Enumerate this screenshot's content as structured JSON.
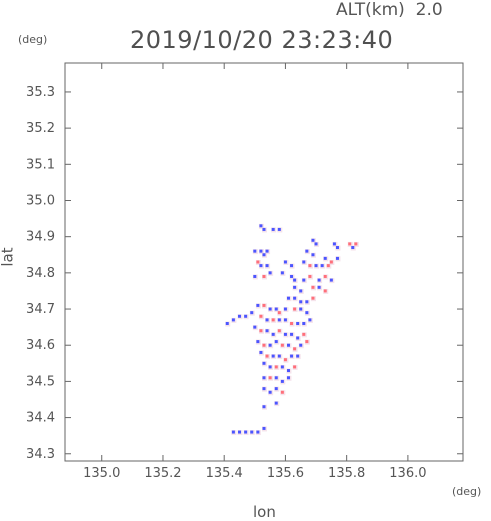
{
  "header": {
    "altitude_label": "ALT(km)",
    "altitude_value": "2.0",
    "datetime": "2019/10/20 23:23:40"
  },
  "chart_data": {
    "type": "heatmap",
    "xlabel": "lon",
    "ylabel": "lat",
    "x_unit": "(deg)",
    "y_unit": "(deg)",
    "xlim": [
      134.88,
      136.18
    ],
    "ylim": [
      34.28,
      35.38
    ],
    "x_ticks": [
      135.0,
      135.2,
      135.4,
      135.6,
      135.8,
      136.0
    ],
    "x_tick_labels": [
      "135.0",
      "135.2",
      "135.4",
      "135.6",
      "135.8",
      "136.0"
    ],
    "y_ticks": [
      34.3,
      34.4,
      34.5,
      34.6,
      34.7,
      34.8,
      34.9,
      35.0,
      35.1,
      35.2,
      35.3
    ],
    "y_tick_labels": [
      "34.3",
      "34.4",
      "34.5",
      "34.6",
      "34.7",
      "34.8",
      "34.9",
      "35.0",
      "35.1",
      "35.2",
      "35.3"
    ],
    "grid": false,
    "colors": {
      "positive": "#ff6f7a",
      "negative": "#4b55ff",
      "faint": "#f1d7e2"
    },
    "cells": [
      [
        135.52,
        34.93,
        -1
      ],
      [
        135.53,
        34.92,
        -1
      ],
      [
        135.56,
        34.92,
        -1
      ],
      [
        135.58,
        34.92,
        -1
      ],
      [
        135.69,
        34.89,
        -1
      ],
      [
        135.7,
        34.88,
        -1
      ],
      [
        135.76,
        34.88,
        -1
      ],
      [
        135.77,
        34.87,
        -1
      ],
      [
        135.81,
        34.88,
        1
      ],
      [
        135.83,
        34.88,
        1
      ],
      [
        135.82,
        34.87,
        -1
      ],
      [
        135.5,
        34.86,
        -1
      ],
      [
        135.52,
        34.86,
        -1
      ],
      [
        135.54,
        34.86,
        -1
      ],
      [
        135.53,
        34.85,
        -1
      ],
      [
        135.67,
        34.86,
        -1
      ],
      [
        135.69,
        34.85,
        -1
      ],
      [
        135.73,
        34.84,
        -1
      ],
      [
        135.75,
        34.83,
        1
      ],
      [
        135.77,
        34.84,
        -1
      ],
      [
        135.51,
        34.83,
        1
      ],
      [
        135.52,
        34.82,
        -1
      ],
      [
        135.54,
        34.82,
        -1
      ],
      [
        135.6,
        34.83,
        -1
      ],
      [
        135.62,
        34.82,
        -1
      ],
      [
        135.66,
        34.83,
        -1
      ],
      [
        135.68,
        34.82,
        1
      ],
      [
        135.7,
        34.82,
        -1
      ],
      [
        135.72,
        34.82,
        -1
      ],
      [
        135.74,
        34.82,
        1
      ],
      [
        135.5,
        34.79,
        -1
      ],
      [
        135.53,
        34.79,
        1
      ],
      [
        135.55,
        34.8,
        -1
      ],
      [
        135.59,
        34.8,
        -1
      ],
      [
        135.62,
        34.79,
        -1
      ],
      [
        135.63,
        34.78,
        -1
      ],
      [
        135.66,
        34.78,
        -1
      ],
      [
        135.68,
        34.79,
        1
      ],
      [
        135.71,
        34.78,
        -1
      ],
      [
        135.73,
        34.79,
        1
      ],
      [
        135.75,
        34.78,
        -1
      ],
      [
        135.63,
        34.76,
        -1
      ],
      [
        135.65,
        34.75,
        -1
      ],
      [
        135.69,
        34.76,
        1
      ],
      [
        135.71,
        34.76,
        -1
      ],
      [
        135.73,
        34.75,
        1
      ],
      [
        135.61,
        34.73,
        -1
      ],
      [
        135.63,
        34.73,
        -1
      ],
      [
        135.65,
        34.72,
        -1
      ],
      [
        135.67,
        34.72,
        -1
      ],
      [
        135.69,
        34.73,
        1
      ],
      [
        135.51,
        34.71,
        -1
      ],
      [
        135.53,
        34.71,
        1
      ],
      [
        135.55,
        34.7,
        -1
      ],
      [
        135.57,
        34.7,
        -1
      ],
      [
        135.58,
        34.69,
        1
      ],
      [
        135.6,
        34.7,
        -1
      ],
      [
        135.63,
        34.7,
        1
      ],
      [
        135.65,
        34.7,
        -1
      ],
      [
        135.67,
        34.69,
        -1
      ],
      [
        135.49,
        34.69,
        -1
      ],
      [
        135.47,
        34.68,
        -1
      ],
      [
        135.45,
        34.68,
        -1
      ],
      [
        135.43,
        34.67,
        -1
      ],
      [
        135.41,
        34.66,
        -1
      ],
      [
        135.52,
        34.68,
        1
      ],
      [
        135.54,
        34.67,
        -1
      ],
      [
        135.56,
        34.67,
        1
      ],
      [
        135.58,
        34.67,
        -1
      ],
      [
        135.6,
        34.67,
        -1
      ],
      [
        135.62,
        34.66,
        1
      ],
      [
        135.64,
        34.66,
        -1
      ],
      [
        135.66,
        34.66,
        -1
      ],
      [
        135.68,
        34.67,
        -1
      ],
      [
        135.5,
        34.65,
        -1
      ],
      [
        135.52,
        34.64,
        1
      ],
      [
        135.54,
        34.64,
        -1
      ],
      [
        135.56,
        34.63,
        -1
      ],
      [
        135.58,
        34.64,
        1
      ],
      [
        135.6,
        34.63,
        -1
      ],
      [
        135.62,
        34.63,
        -1
      ],
      [
        135.64,
        34.62,
        -1
      ],
      [
        135.66,
        34.63,
        1
      ],
      [
        135.51,
        34.61,
        -1
      ],
      [
        135.53,
        34.6,
        1
      ],
      [
        135.55,
        34.6,
        -1
      ],
      [
        135.57,
        34.61,
        -1
      ],
      [
        135.59,
        34.6,
        1
      ],
      [
        135.61,
        34.6,
        -1
      ],
      [
        135.63,
        34.59,
        1
      ],
      [
        135.65,
        34.6,
        -1
      ],
      [
        135.67,
        34.61,
        1
      ],
      [
        135.52,
        34.58,
        -1
      ],
      [
        135.54,
        34.57,
        1
      ],
      [
        135.56,
        34.57,
        -1
      ],
      [
        135.58,
        34.57,
        -1
      ],
      [
        135.6,
        34.56,
        1
      ],
      [
        135.62,
        34.57,
        -1
      ],
      [
        135.64,
        34.57,
        -1
      ],
      [
        135.53,
        34.55,
        -1
      ],
      [
        135.55,
        34.54,
        -1
      ],
      [
        135.57,
        34.54,
        1
      ],
      [
        135.59,
        34.54,
        -1
      ],
      [
        135.61,
        34.53,
        -1
      ],
      [
        135.63,
        34.54,
        1
      ],
      [
        135.53,
        34.51,
        -1
      ],
      [
        135.55,
        34.51,
        1
      ],
      [
        135.57,
        34.51,
        -1
      ],
      [
        135.59,
        34.5,
        -1
      ],
      [
        135.61,
        34.51,
        -1
      ],
      [
        135.53,
        34.48,
        -1
      ],
      [
        135.55,
        34.47,
        -1
      ],
      [
        135.57,
        34.48,
        -1
      ],
      [
        135.59,
        34.47,
        1
      ],
      [
        135.53,
        34.43,
        -1
      ],
      [
        135.57,
        34.44,
        -1
      ],
      [
        135.43,
        34.36,
        -1
      ],
      [
        135.45,
        34.36,
        -1
      ],
      [
        135.47,
        34.36,
        -1
      ],
      [
        135.49,
        34.36,
        -1
      ],
      [
        135.51,
        34.36,
        -1
      ],
      [
        135.53,
        34.37,
        -1
      ]
    ]
  }
}
